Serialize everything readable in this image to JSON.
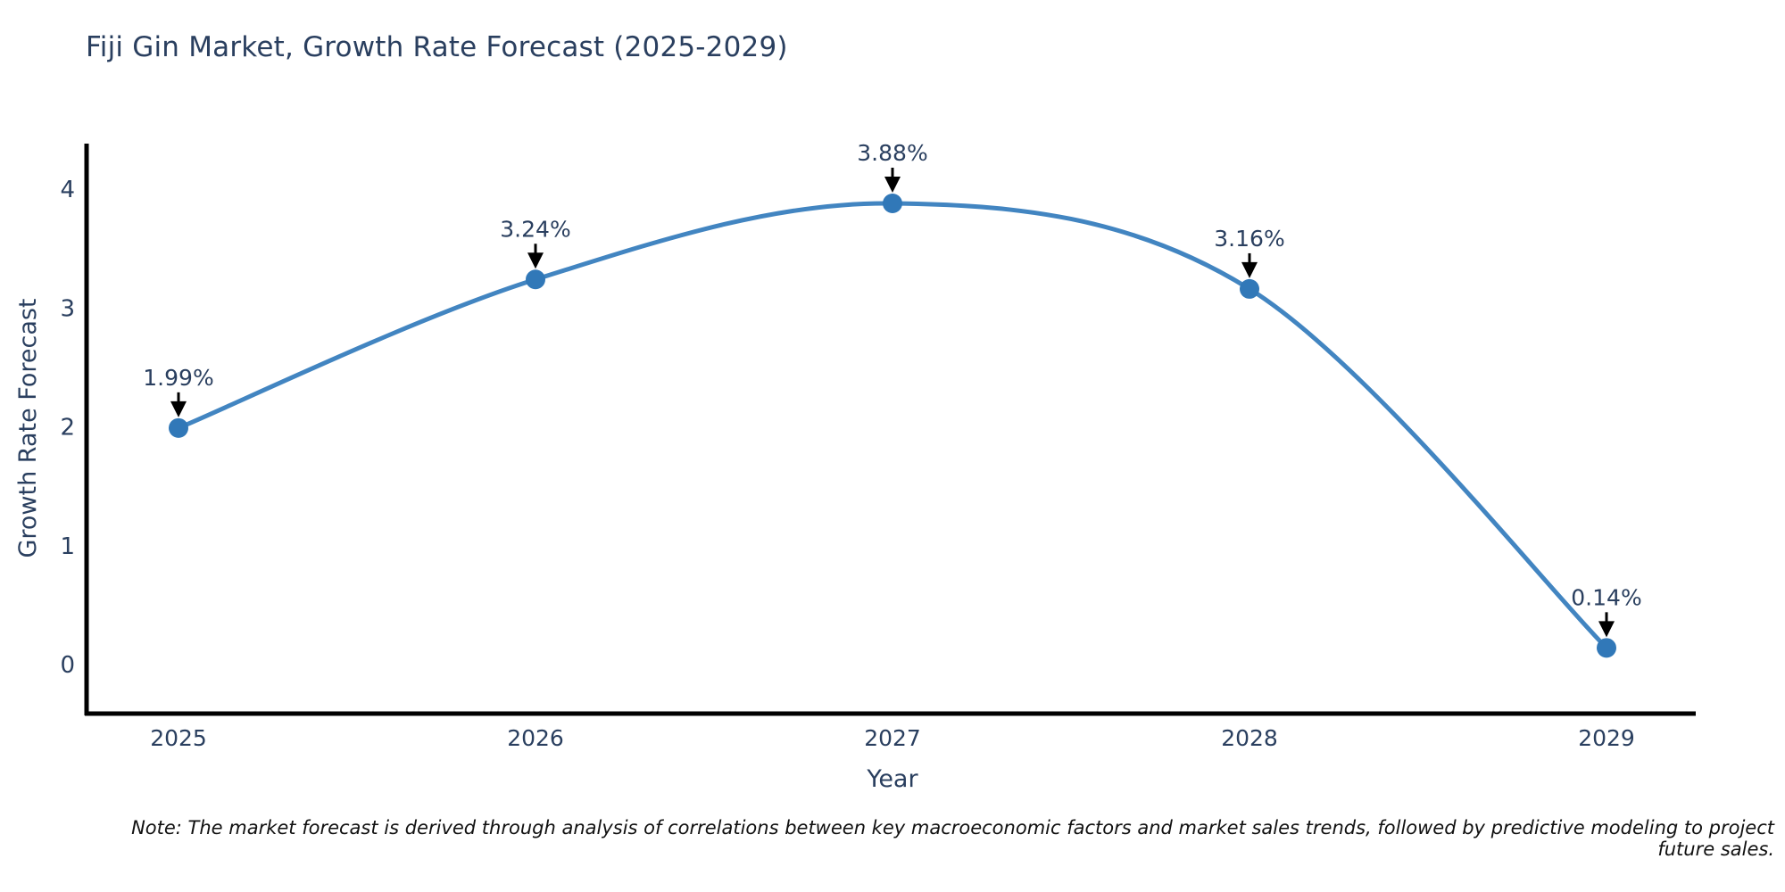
{
  "chart_data": {
    "type": "line",
    "title": "Fiji Gin Market, Growth Rate Forecast (2025-2029)",
    "xlabel": "Year",
    "ylabel": "Growth Rate Forecast",
    "x": [
      "2025",
      "2026",
      "2027",
      "2028",
      "2029"
    ],
    "values": [
      1.99,
      3.24,
      3.88,
      3.16,
      0.14
    ],
    "point_labels": [
      "1.99%",
      "3.24%",
      "3.88%",
      "3.16%",
      "0.14%"
    ],
    "yticks": [
      0,
      1,
      2,
      3,
      4
    ],
    "ylim": [
      -0.41,
      4.38
    ],
    "grid": false,
    "legend": "none",
    "curve": "spline",
    "line_color": "#4285c1",
    "marker_color": "#3178b8",
    "axis_color": "#000000",
    "tick_color": "#2a3f5f",
    "annotation_text_color": "#2a3f5f",
    "annotation_arrow_color": "#000000",
    "background_color": "#ffffff"
  },
  "note": {
    "text": "Note: The market forecast is derived through analysis of correlations between key macroeconomic factors and market sales trends, followed by predictive modeling to project future sales."
  }
}
